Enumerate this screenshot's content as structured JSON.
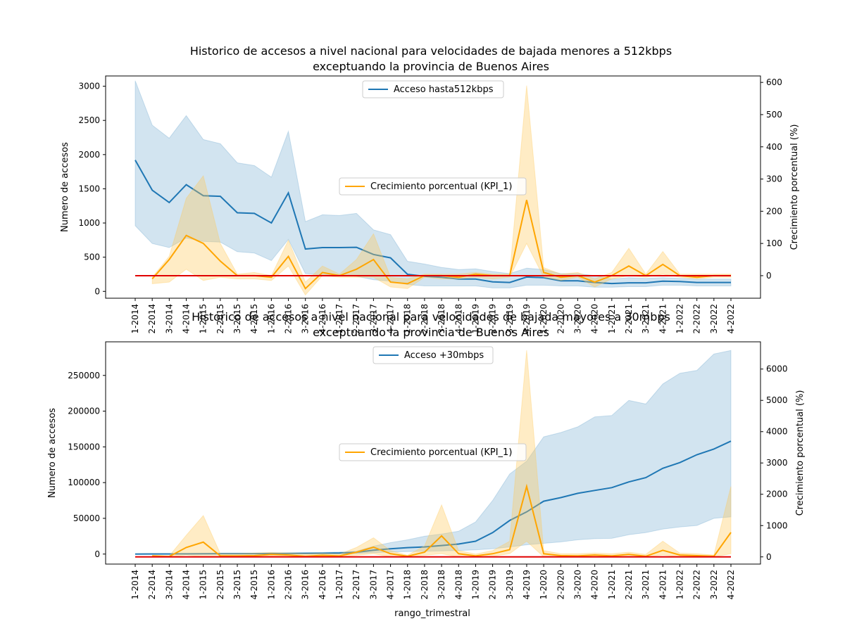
{
  "colors": {
    "access_line": "#1f77b4",
    "access_band": "#1f77b4",
    "growth_line": "#ffa500",
    "growth_band": "#ffc85a",
    "zero_line": "#e00000"
  },
  "chart_data": [
    {
      "type": "line",
      "title_lines": [
        "Historico de accesos a nivel nacional para velocidades de bajada menores a 512kbps",
        "exceptuando la provincia de Buenos Aires"
      ],
      "xlabel": "",
      "ylabel": "Numero de accesos",
      "y2label": "Crecimiento porcentual (%)",
      "x": [
        "1-2014",
        "2-2014",
        "3-2014",
        "4-2014",
        "1-2015",
        "2-2015",
        "3-2015",
        "4-2015",
        "1-2016",
        "2-2016",
        "3-2016",
        "4-2016",
        "1-2017",
        "2-2017",
        "3-2017",
        "4-2017",
        "1-2018",
        "2-2018",
        "3-2018",
        "4-2018",
        "1-2019",
        "2-2019",
        "3-2019",
        "4-2019",
        "1-2020",
        "2-2020",
        "3-2020",
        "4-2020",
        "1-2021",
        "2-2021",
        "3-2021",
        "4-2021",
        "1-2022",
        "2-2022",
        "3-2022",
        "4-2022"
      ],
      "ylim": [
        -100,
        3150
      ],
      "yticks": [
        0,
        500,
        1000,
        1500,
        2000,
        2500,
        3000
      ],
      "y2lim": [
        -70,
        620
      ],
      "y2ticks": [
        0,
        100,
        200,
        300,
        400,
        500,
        600
      ],
      "grid": false,
      "legend_primary": {
        "label": "Acceso hasta512kbps",
        "placement": "upper-center"
      },
      "legend_secondary": {
        "label": "Crecimiento porcentual (KPI_1)",
        "placement": "center"
      },
      "series_access": {
        "values": [
          1920,
          1480,
          1300,
          1560,
          1400,
          1390,
          1150,
          1140,
          1000,
          1440,
          620,
          640,
          640,
          645,
          540,
          490,
          250,
          220,
          205,
          180,
          180,
          140,
          130,
          210,
          200,
          155,
          155,
          130,
          115,
          125,
          125,
          150,
          145,
          130,
          130,
          130
        ],
        "upper": [
          3080,
          2430,
          2240,
          2570,
          2220,
          2160,
          1880,
          1840,
          1670,
          2340,
          1020,
          1120,
          1110,
          1140,
          900,
          830,
          440,
          400,
          350,
          320,
          330,
          290,
          260,
          340,
          320,
          260,
          260,
          230,
          180,
          200,
          190,
          200,
          190,
          180,
          180,
          180
        ],
        "lower": [
          960,
          700,
          640,
          780,
          730,
          720,
          580,
          560,
          450,
          760,
          260,
          240,
          240,
          220,
          170,
          150,
          100,
          80,
          80,
          80,
          80,
          50,
          50,
          90,
          90,
          80,
          80,
          60,
          60,
          70,
          70,
          90,
          90,
          80,
          80,
          80
        ]
      },
      "series_growth": {
        "values": [
          null,
          -10,
          50,
          125,
          100,
          45,
          0,
          0,
          -5,
          60,
          -40,
          10,
          0,
          20,
          50,
          -20,
          -25,
          0,
          0,
          -5,
          5,
          0,
          0,
          235,
          10,
          -5,
          0,
          -20,
          0,
          30,
          0,
          35,
          0,
          -5,
          0,
          0
        ],
        "upper": [
          null,
          -5,
          60,
          240,
          310,
          100,
          5,
          10,
          0,
          110,
          -20,
          30,
          5,
          50,
          130,
          -5,
          -10,
          5,
          5,
          5,
          10,
          5,
          5,
          590,
          25,
          5,
          10,
          -10,
          10,
          85,
          5,
          75,
          5,
          5,
          5,
          5
        ],
        "lower": [
          null,
          -25,
          -20,
          20,
          -15,
          -5,
          -10,
          -10,
          -15,
          30,
          -60,
          0,
          -5,
          -5,
          -5,
          -35,
          -40,
          -5,
          -10,
          -10,
          -5,
          -10,
          -5,
          100,
          -5,
          -15,
          -5,
          -35,
          -10,
          0,
          -5,
          5,
          -5,
          -10,
          -5,
          -5
        ]
      },
      "reference_line_y2": 0
    },
    {
      "type": "line",
      "title_lines": [
        "Historico de accesos a nivel nacional para velocidades de bajada mayores a 30mbps",
        "exceptuando la provincia de Buenos Aires"
      ],
      "xlabel": "rango_trimestral",
      "ylabel": "Numero de accesos",
      "y2label": "Crecimiento porcentual (%)",
      "x": [
        "1-2014",
        "2-2014",
        "3-2014",
        "4-2014",
        "1-2015",
        "2-2015",
        "3-2015",
        "4-2015",
        "1-2016",
        "2-2016",
        "3-2016",
        "4-2016",
        "1-2017",
        "2-2017",
        "3-2017",
        "4-2017",
        "1-2018",
        "2-2018",
        "3-2018",
        "4-2018",
        "1-2019",
        "2-2019",
        "3-2019",
        "4-2019",
        "1-2020",
        "2-2020",
        "3-2020",
        "4-2020",
        "1-2021",
        "2-2021",
        "3-2021",
        "4-2021",
        "1-2022",
        "2-2022",
        "3-2022",
        "4-2022"
      ],
      "ylim": [
        -14000,
        297000
      ],
      "yticks": [
        0,
        50000,
        100000,
        150000,
        200000,
        250000
      ],
      "y2lim": [
        -230,
        6870
      ],
      "y2ticks": [
        0,
        1000,
        2000,
        3000,
        4000,
        5000,
        6000
      ],
      "grid": false,
      "legend_primary": {
        "label": "Acceso +30mbps",
        "placement": "upper-center"
      },
      "legend_secondary": {
        "label": "Crecimiento porcentual (KPI_1)",
        "placement": "center"
      },
      "series_access": {
        "values": [
          100,
          150,
          200,
          300,
          400,
          500,
          600,
          700,
          800,
          900,
          1000,
          1200,
          1500,
          2500,
          5500,
          7500,
          9000,
          10000,
          12000,
          14000,
          18000,
          30000,
          47000,
          59000,
          74000,
          79000,
          85000,
          89000,
          93000,
          101000,
          107000,
          120000,
          128000,
          139000,
          147000,
          158000
        ],
        "upper": [
          300,
          500,
          600,
          800,
          900,
          1100,
          1200,
          1400,
          1600,
          1800,
          2000,
          2300,
          2800,
          4000,
          11000,
          16000,
          20000,
          25000,
          28000,
          32000,
          45000,
          75000,
          112000,
          130000,
          164000,
          170000,
          178000,
          192000,
          194000,
          215000,
          210000,
          238000,
          253000,
          257000,
          280000,
          285000
        ],
        "lower": [
          0,
          0,
          0,
          0,
          0,
          0,
          0,
          0,
          0,
          0,
          0,
          0,
          200,
          800,
          2000,
          3000,
          3500,
          4000,
          4500,
          5000,
          6000,
          7500,
          10000,
          13000,
          15000,
          17000,
          20000,
          21500,
          22000,
          27000,
          30000,
          35000,
          38000,
          40000,
          50000,
          52000
        ]
      },
      "series_growth": {
        "values": [
          null,
          30,
          10,
          300,
          470,
          30,
          30,
          40,
          80,
          60,
          20,
          50,
          30,
          150,
          310,
          100,
          20,
          150,
          670,
          100,
          30,
          100,
          230,
          2250,
          100,
          40,
          30,
          60,
          30,
          80,
          20,
          210,
          60,
          40,
          20,
          780
        ],
        "upper": [
          null,
          50,
          30,
          690,
          1320,
          100,
          100,
          120,
          140,
          120,
          100,
          110,
          90,
          300,
          610,
          200,
          50,
          350,
          1660,
          200,
          90,
          200,
          500,
          6600,
          200,
          100,
          100,
          120,
          100,
          150,
          80,
          500,
          120,
          100,
          60,
          2250
        ],
        "lower": [
          null,
          0,
          0,
          60,
          0,
          0,
          0,
          0,
          20,
          0,
          0,
          0,
          0,
          50,
          100,
          0,
          0,
          50,
          100,
          0,
          0,
          20,
          100,
          500,
          0,
          0,
          0,
          0,
          0,
          0,
          0,
          60,
          0,
          0,
          0,
          100
        ]
      },
      "reference_line_y2": 0
    }
  ]
}
